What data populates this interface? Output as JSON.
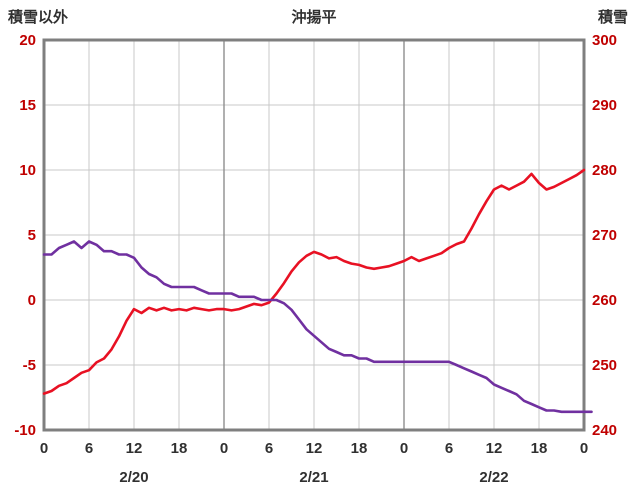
{
  "chart_data": {
    "type": "line",
    "title": "沖揚平",
    "left_axis": {
      "title": "積雪以外",
      "range": [
        -10,
        20
      ],
      "tick_step": 5,
      "ticks": [
        20,
        15,
        10,
        5,
        0,
        -5,
        -10
      ]
    },
    "right_axis": {
      "title": "積雪",
      "range": [
        240,
        300
      ],
      "tick_step": 10,
      "ticks": [
        300,
        290,
        280,
        270,
        260,
        250,
        240
      ]
    },
    "x_axis": {
      "hours_span": 72,
      "tick_step_hours": 6,
      "hour_labels": [
        "0",
        "6",
        "12",
        "18",
        "0",
        "6",
        "12",
        "18",
        "0",
        "6",
        "12",
        "18",
        "0"
      ],
      "date_labels": [
        "2/20",
        "2/21",
        "2/22"
      ],
      "date_label_center_hours": [
        12,
        36,
        60
      ]
    },
    "grid": "on",
    "legend": "none",
    "series": [
      {
        "name": "積雪以外",
        "axis": "left",
        "color": "#e81123",
        "x_step_hours": 1,
        "values": [
          -7.2,
          -7.0,
          -6.6,
          -6.4,
          -6.0,
          -5.6,
          -5.4,
          -4.8,
          -4.5,
          -3.8,
          -2.8,
          -1.6,
          -0.7,
          -1.0,
          -0.6,
          -0.8,
          -0.6,
          -0.8,
          -0.7,
          -0.8,
          -0.6,
          -0.7,
          -0.8,
          -0.7,
          -0.7,
          -0.8,
          -0.7,
          -0.5,
          -0.3,
          -0.4,
          -0.2,
          0.5,
          1.3,
          2.2,
          2.9,
          3.4,
          3.7,
          3.5,
          3.2,
          3.3,
          3.0,
          2.8,
          2.7,
          2.5,
          2.4,
          2.5,
          2.6,
          2.8,
          3.0,
          3.3,
          3.0,
          3.2,
          3.4,
          3.6,
          4.0,
          4.3,
          4.5,
          5.5,
          6.6,
          7.6,
          8.5,
          8.8,
          8.5,
          8.8,
          9.1,
          9.7,
          9.0,
          8.5,
          8.7,
          9.0,
          9.3,
          9.6,
          10.0
        ]
      },
      {
        "name": "積雪",
        "axis": "right",
        "color": "#7030a0",
        "x_step_hours": 1,
        "values": [
          267,
          267,
          268,
          268.5,
          269,
          268,
          269,
          268.5,
          267.5,
          267.5,
          267,
          267,
          266.5,
          265,
          264,
          263.5,
          262.5,
          262,
          262,
          262,
          262,
          261.5,
          261,
          261,
          261,
          261,
          260.5,
          260.5,
          260.5,
          260,
          260,
          260,
          259.5,
          258.5,
          257,
          255.5,
          254.5,
          253.5,
          252.5,
          252,
          251.5,
          251.5,
          251,
          251,
          250.5,
          250.5,
          250.5,
          250.5,
          250.5,
          250.5,
          250.5,
          250.5,
          250.5,
          250.5,
          250.5,
          250,
          249.5,
          249,
          248.5,
          248,
          247,
          246.5,
          246,
          245.5,
          244.5,
          244,
          243.5,
          243,
          243,
          242.8,
          242.8,
          242.8,
          242.8,
          242.8
        ]
      }
    ],
    "colors": {
      "tick_labels": "#c00000",
      "axis_text": "#303030",
      "grid_minor": "#c9c9c9",
      "grid_major": "#8f8f8f",
      "frame": "#7f7f7f",
      "background": "#ffffff"
    }
  }
}
